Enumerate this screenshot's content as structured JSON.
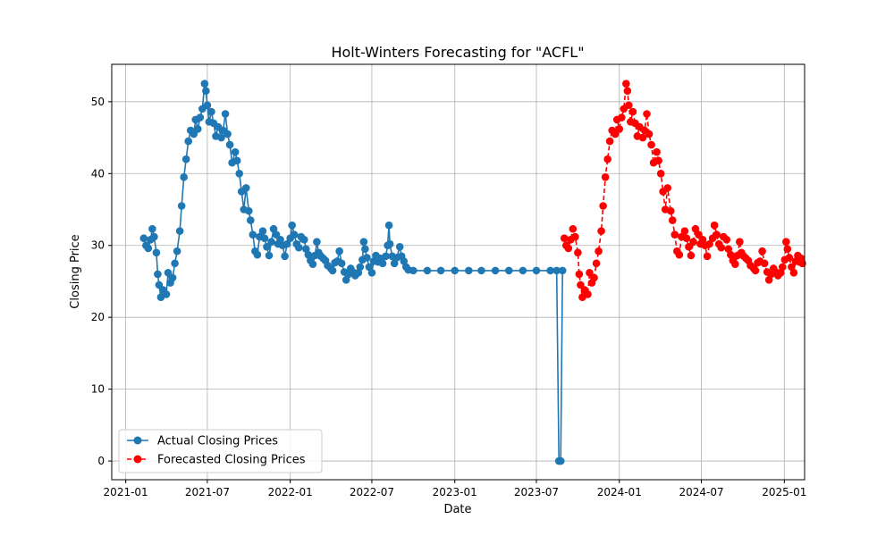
{
  "chart_data": {
    "type": "line",
    "title": "Holt-Winters Forecasting for \"ACFL\"",
    "xlabel": "Date",
    "ylabel": "Closing Price",
    "xlim": [
      "2020-12-01",
      "2025-02-15"
    ],
    "ylim": [
      -2.6,
      55.2
    ],
    "grid": true,
    "legend_position": "lower-left",
    "x_ticks": [
      {
        "date": "2021-01-01",
        "label": "2021-01"
      },
      {
        "date": "2021-07-01",
        "label": "2021-07"
      },
      {
        "date": "2022-01-01",
        "label": "2022-01"
      },
      {
        "date": "2022-07-01",
        "label": "2022-07"
      },
      {
        "date": "2023-01-01",
        "label": "2023-01"
      },
      {
        "date": "2023-07-01",
        "label": "2023-07"
      },
      {
        "date": "2024-01-01",
        "label": "2024-01"
      },
      {
        "date": "2024-07-01",
        "label": "2024-07"
      },
      {
        "date": "2025-01-01",
        "label": "2025-01"
      }
    ],
    "y_ticks": [
      0,
      10,
      20,
      30,
      40,
      50
    ],
    "series": [
      {
        "name": "Actual Closing Prices",
        "color": "#1f77b4",
        "line_style": "solid",
        "marker": "circle",
        "points": [
          [
            "2021-02-10",
            31.0
          ],
          [
            "2021-02-15",
            30.0
          ],
          [
            "2021-02-20",
            29.6
          ],
          [
            "2021-02-25",
            30.8
          ],
          [
            "2021-03-01",
            32.3
          ],
          [
            "2021-03-05",
            31.2
          ],
          [
            "2021-03-10",
            29.0
          ],
          [
            "2021-03-13",
            26.0
          ],
          [
            "2021-03-16",
            24.5
          ],
          [
            "2021-03-20",
            22.8
          ],
          [
            "2021-03-25",
            23.8
          ],
          [
            "2021-04-01",
            23.2
          ],
          [
            "2021-04-05",
            26.2
          ],
          [
            "2021-04-10",
            24.8
          ],
          [
            "2021-04-15",
            25.5
          ],
          [
            "2021-04-20",
            27.5
          ],
          [
            "2021-04-25",
            29.2
          ],
          [
            "2021-05-01",
            32.0
          ],
          [
            "2021-05-05",
            35.5
          ],
          [
            "2021-05-10",
            39.5
          ],
          [
            "2021-05-15",
            42.0
          ],
          [
            "2021-05-20",
            44.5
          ],
          [
            "2021-05-25",
            46.0
          ],
          [
            "2021-06-01",
            45.5
          ],
          [
            "2021-06-05",
            47.5
          ],
          [
            "2021-06-10",
            46.2
          ],
          [
            "2021-06-15",
            47.8
          ],
          [
            "2021-06-20",
            49.0
          ],
          [
            "2021-06-25",
            52.5
          ],
          [
            "2021-06-28",
            51.5
          ],
          [
            "2021-07-01",
            49.5
          ],
          [
            "2021-07-05",
            47.2
          ],
          [
            "2021-07-10",
            48.6
          ],
          [
            "2021-07-15",
            47.0
          ],
          [
            "2021-07-20",
            45.2
          ],
          [
            "2021-07-25",
            46.5
          ],
          [
            "2021-08-01",
            45.0
          ],
          [
            "2021-08-05",
            46.0
          ],
          [
            "2021-08-10",
            48.3
          ],
          [
            "2021-08-15",
            45.5
          ],
          [
            "2021-08-20",
            44.0
          ],
          [
            "2021-08-25",
            41.5
          ],
          [
            "2021-09-01",
            43.0
          ],
          [
            "2021-09-05",
            41.8
          ],
          [
            "2021-09-10",
            40.0
          ],
          [
            "2021-09-15",
            37.5
          ],
          [
            "2021-09-20",
            35.0
          ],
          [
            "2021-09-25",
            38.0
          ],
          [
            "2021-10-01",
            34.8
          ],
          [
            "2021-10-05",
            33.5
          ],
          [
            "2021-10-10",
            31.5
          ],
          [
            "2021-10-15",
            29.2
          ],
          [
            "2021-10-20",
            28.7
          ],
          [
            "2021-10-25",
            31.2
          ],
          [
            "2021-11-01",
            32.0
          ],
          [
            "2021-11-05",
            31.0
          ],
          [
            "2021-11-10",
            29.8
          ],
          [
            "2021-11-15",
            28.6
          ],
          [
            "2021-11-20",
            30.5
          ],
          [
            "2021-11-25",
            32.3
          ],
          [
            "2021-12-01",
            31.5
          ],
          [
            "2021-12-05",
            30.2
          ],
          [
            "2021-12-10",
            30.8
          ],
          [
            "2021-12-15",
            30.0
          ],
          [
            "2021-12-20",
            28.5
          ],
          [
            "2021-12-25",
            30.2
          ],
          [
            "2022-01-01",
            31.0
          ],
          [
            "2022-01-05",
            32.8
          ],
          [
            "2022-01-10",
            31.5
          ],
          [
            "2022-01-15",
            30.2
          ],
          [
            "2022-01-20",
            29.7
          ],
          [
            "2022-01-25",
            31.2
          ],
          [
            "2022-02-01",
            30.8
          ],
          [
            "2022-02-05",
            29.5
          ],
          [
            "2022-02-10",
            28.7
          ],
          [
            "2022-02-15",
            27.9
          ],
          [
            "2022-02-20",
            27.4
          ],
          [
            "2022-02-25",
            28.6
          ],
          [
            "2022-03-01",
            30.5
          ],
          [
            "2022-03-05",
            29.0
          ],
          [
            "2022-03-10",
            28.5
          ],
          [
            "2022-03-15",
            28.2
          ],
          [
            "2022-03-20",
            27.9
          ],
          [
            "2022-03-25",
            27.2
          ],
          [
            "2022-04-01",
            26.8
          ],
          [
            "2022-04-05",
            26.5
          ],
          [
            "2022-04-10",
            27.6
          ],
          [
            "2022-04-15",
            27.8
          ],
          [
            "2022-04-20",
            29.2
          ],
          [
            "2022-04-25",
            27.5
          ],
          [
            "2022-05-01",
            26.3
          ],
          [
            "2022-05-05",
            25.2
          ],
          [
            "2022-05-10",
            26.0
          ],
          [
            "2022-05-15",
            26.8
          ],
          [
            "2022-05-20",
            26.3
          ],
          [
            "2022-05-25",
            25.8
          ],
          [
            "2022-06-01",
            26.2
          ],
          [
            "2022-06-05",
            27.0
          ],
          [
            "2022-06-10",
            28.0
          ],
          [
            "2022-06-13",
            30.5
          ],
          [
            "2022-06-16",
            29.5
          ],
          [
            "2022-06-20",
            28.3
          ],
          [
            "2022-06-25",
            27.0
          ],
          [
            "2022-07-01",
            26.2
          ],
          [
            "2022-07-05",
            27.8
          ],
          [
            "2022-07-10",
            28.6
          ],
          [
            "2022-07-15",
            27.7
          ],
          [
            "2022-07-20",
            28.2
          ],
          [
            "2022-07-25",
            27.5
          ],
          [
            "2022-08-01",
            28.5
          ],
          [
            "2022-08-05",
            30.0
          ],
          [
            "2022-08-08",
            32.8
          ],
          [
            "2022-08-10",
            30.2
          ],
          [
            "2022-08-15",
            28.5
          ],
          [
            "2022-08-20",
            27.5
          ],
          [
            "2022-08-25",
            28.3
          ],
          [
            "2022-09-01",
            29.8
          ],
          [
            "2022-09-05",
            28.5
          ],
          [
            "2022-09-10",
            27.8
          ],
          [
            "2022-09-15",
            27.0
          ],
          [
            "2022-09-20",
            26.6
          ],
          [
            "2022-10-01",
            26.5
          ],
          [
            "2022-11-01",
            26.5
          ],
          [
            "2022-12-01",
            26.5
          ],
          [
            "2023-01-01",
            26.5
          ],
          [
            "2023-02-01",
            26.5
          ],
          [
            "2023-03-01",
            26.5
          ],
          [
            "2023-04-01",
            26.5
          ],
          [
            "2023-05-01",
            26.5
          ],
          [
            "2023-06-01",
            26.5
          ],
          [
            "2023-07-01",
            26.5
          ],
          [
            "2023-08-01",
            26.5
          ],
          [
            "2023-08-15",
            26.5
          ],
          [
            "2023-08-20",
            0.0
          ],
          [
            "2023-08-24",
            0.0
          ],
          [
            "2023-08-28",
            26.5
          ]
        ]
      },
      {
        "name": "Forecasted Closing Prices",
        "color": "#ff0000",
        "line_style": "dashed",
        "marker": "circle",
        "points": [
          [
            "2023-09-01",
            31.0
          ],
          [
            "2023-09-05",
            30.0
          ],
          [
            "2023-09-10",
            29.6
          ],
          [
            "2023-09-15",
            30.8
          ],
          [
            "2023-09-20",
            32.3
          ],
          [
            "2023-09-25",
            31.2
          ],
          [
            "2023-10-01",
            29.0
          ],
          [
            "2023-10-04",
            26.0
          ],
          [
            "2023-10-07",
            24.5
          ],
          [
            "2023-10-11",
            22.8
          ],
          [
            "2023-10-16",
            23.8
          ],
          [
            "2023-10-23",
            23.2
          ],
          [
            "2023-10-27",
            26.2
          ],
          [
            "2023-11-01",
            24.8
          ],
          [
            "2023-11-06",
            25.5
          ],
          [
            "2023-11-11",
            27.5
          ],
          [
            "2023-11-16",
            29.2
          ],
          [
            "2023-11-22",
            32.0
          ],
          [
            "2023-11-26",
            35.5
          ],
          [
            "2023-12-01",
            39.5
          ],
          [
            "2023-12-06",
            42.0
          ],
          [
            "2023-12-11",
            44.5
          ],
          [
            "2023-12-16",
            46.0
          ],
          [
            "2023-12-23",
            45.5
          ],
          [
            "2023-12-27",
            47.5
          ],
          [
            "2024-01-01",
            46.2
          ],
          [
            "2024-01-06",
            47.8
          ],
          [
            "2024-01-11",
            49.0
          ],
          [
            "2024-01-16",
            52.5
          ],
          [
            "2024-01-19",
            51.5
          ],
          [
            "2024-01-22",
            49.5
          ],
          [
            "2024-01-26",
            47.2
          ],
          [
            "2024-01-31",
            48.6
          ],
          [
            "2024-02-05",
            47.0
          ],
          [
            "2024-02-10",
            45.2
          ],
          [
            "2024-02-15",
            46.5
          ],
          [
            "2024-02-22",
            45.0
          ],
          [
            "2024-02-26",
            46.0
          ],
          [
            "2024-03-02",
            48.3
          ],
          [
            "2024-03-07",
            45.5
          ],
          [
            "2024-03-12",
            44.0
          ],
          [
            "2024-03-17",
            41.5
          ],
          [
            "2024-03-24",
            43.0
          ],
          [
            "2024-03-28",
            41.8
          ],
          [
            "2024-04-02",
            40.0
          ],
          [
            "2024-04-07",
            37.5
          ],
          [
            "2024-04-12",
            35.0
          ],
          [
            "2024-04-17",
            38.0
          ],
          [
            "2024-04-24",
            34.8
          ],
          [
            "2024-04-28",
            33.5
          ],
          [
            "2024-05-03",
            31.5
          ],
          [
            "2024-05-08",
            29.2
          ],
          [
            "2024-05-13",
            28.7
          ],
          [
            "2024-05-18",
            31.2
          ],
          [
            "2024-05-25",
            32.0
          ],
          [
            "2024-05-29",
            31.0
          ],
          [
            "2024-06-03",
            29.8
          ],
          [
            "2024-06-08",
            28.6
          ],
          [
            "2024-06-13",
            30.5
          ],
          [
            "2024-06-18",
            32.3
          ],
          [
            "2024-06-25",
            31.5
          ],
          [
            "2024-06-29",
            30.2
          ],
          [
            "2024-07-04",
            30.8
          ],
          [
            "2024-07-09",
            30.0
          ],
          [
            "2024-07-14",
            28.5
          ],
          [
            "2024-07-19",
            30.2
          ],
          [
            "2024-07-26",
            31.0
          ],
          [
            "2024-07-30",
            32.8
          ],
          [
            "2024-08-04",
            31.5
          ],
          [
            "2024-08-09",
            30.2
          ],
          [
            "2024-08-14",
            29.7
          ],
          [
            "2024-08-19",
            31.2
          ],
          [
            "2024-08-26",
            30.8
          ],
          [
            "2024-08-30",
            29.5
          ],
          [
            "2024-09-04",
            28.7
          ],
          [
            "2024-09-09",
            27.9
          ],
          [
            "2024-09-14",
            27.4
          ],
          [
            "2024-09-19",
            28.6
          ],
          [
            "2024-09-24",
            30.5
          ],
          [
            "2024-09-28",
            29.0
          ],
          [
            "2024-10-03",
            28.5
          ],
          [
            "2024-10-08",
            28.2
          ],
          [
            "2024-10-13",
            27.9
          ],
          [
            "2024-10-18",
            27.2
          ],
          [
            "2024-10-25",
            26.8
          ],
          [
            "2024-10-29",
            26.5
          ],
          [
            "2024-11-03",
            27.6
          ],
          [
            "2024-11-08",
            27.8
          ],
          [
            "2024-11-13",
            29.2
          ],
          [
            "2024-11-18",
            27.5
          ],
          [
            "2024-11-24",
            26.3
          ],
          [
            "2024-11-28",
            25.2
          ],
          [
            "2024-12-03",
            26.0
          ],
          [
            "2024-12-08",
            26.8
          ],
          [
            "2024-12-13",
            26.3
          ],
          [
            "2024-12-18",
            25.8
          ],
          [
            "2024-12-24",
            26.2
          ],
          [
            "2024-12-28",
            27.0
          ],
          [
            "2025-01-02",
            28.0
          ],
          [
            "2025-01-05",
            30.5
          ],
          [
            "2025-01-08",
            29.5
          ],
          [
            "2025-01-12",
            28.3
          ],
          [
            "2025-01-17",
            27.0
          ],
          [
            "2025-01-22",
            26.2
          ],
          [
            "2025-01-26",
            27.8
          ],
          [
            "2025-01-31",
            28.6
          ],
          [
            "2025-02-04",
            27.7
          ],
          [
            "2025-02-07",
            28.2
          ],
          [
            "2025-02-10",
            27.5
          ]
        ]
      }
    ]
  }
}
